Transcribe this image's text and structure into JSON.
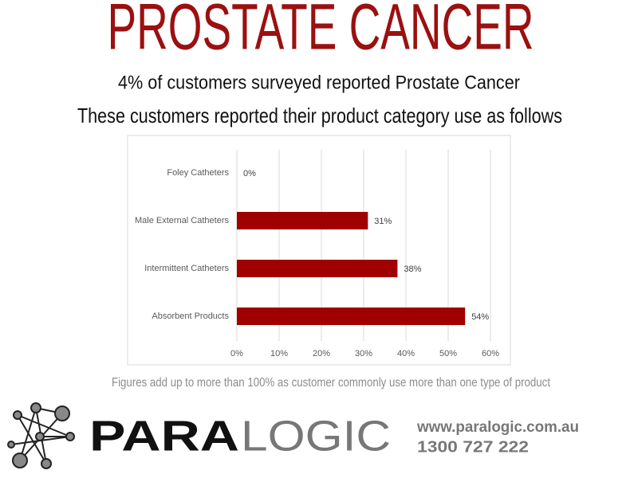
{
  "chart_data": {
    "type": "bar",
    "orientation": "horizontal",
    "title": "PROSTATE CANCER",
    "subtitle": [
      "4% of customers surveyed reported Prostate Cancer",
      "These customers reported their product category use as follows"
    ],
    "categories": [
      "Foley Catheters",
      "Male External Catheters",
      "Intermittent Catheters",
      "Absorbent Products"
    ],
    "values": [
      0,
      31,
      38,
      54
    ],
    "value_labels": [
      "0%",
      "31%",
      "38%",
      "54%"
    ],
    "color": "#a00000",
    "xlim": [
      0,
      60
    ],
    "xticks": [
      {
        "value": 0,
        "label": "0%"
      },
      {
        "value": 10,
        "label": "10%"
      },
      {
        "value": 20,
        "label": "20%"
      },
      {
        "value": 30,
        "label": "30%"
      },
      {
        "value": 40,
        "label": "40%"
      },
      {
        "value": 50,
        "label": "50%"
      },
      {
        "value": 60,
        "label": "60%"
      }
    ],
    "grid": true,
    "note": "Figures add up to more than 100% as customer commonly use more than one type of product"
  },
  "footer": {
    "logo_bold": "PARA",
    "logo_light": "LOGIC",
    "website": "www.paralogic.com.au",
    "phone": "1300 727 222"
  }
}
